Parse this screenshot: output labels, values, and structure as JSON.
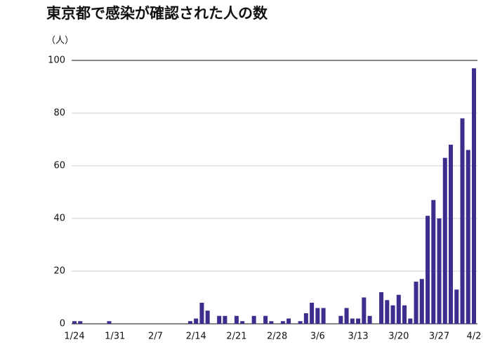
{
  "chart_data": {
    "type": "bar",
    "title": "東京都で感染が確認された人の数",
    "y_label": "（人）",
    "categories": [
      "1/24",
      null,
      null,
      null,
      null,
      null,
      null,
      "1/31",
      null,
      null,
      null,
      null,
      null,
      null,
      "2/7",
      null,
      null,
      null,
      null,
      null,
      null,
      "2/14",
      null,
      null,
      null,
      null,
      null,
      null,
      "2/21",
      null,
      null,
      null,
      null,
      null,
      null,
      "2/28",
      null,
      null,
      null,
      null,
      null,
      null,
      "3/6",
      null,
      null,
      null,
      null,
      null,
      null,
      "3/13",
      null,
      null,
      null,
      null,
      null,
      null,
      "3/20",
      null,
      null,
      null,
      null,
      null,
      null,
      "3/27",
      null,
      null,
      null,
      null,
      null,
      "4/2"
    ],
    "values": [
      1,
      1,
      0,
      0,
      0,
      0,
      1,
      0,
      0,
      0,
      0,
      0,
      0,
      0,
      0,
      0,
      0,
      0,
      0,
      0,
      1,
      2,
      8,
      5,
      0,
      3,
      3,
      0,
      3,
      1,
      0,
      3,
      0,
      3,
      1,
      0,
      1,
      2,
      0,
      1,
      4,
      8,
      6,
      6,
      0,
      0,
      3,
      6,
      2,
      2,
      10,
      3,
      0,
      12,
      9,
      7,
      11,
      7,
      2,
      16,
      17,
      41,
      47,
      40,
      63,
      68,
      13,
      78,
      66,
      97
    ],
    "color": "#3b2e8c",
    "ylim": [
      0,
      100
    ],
    "yticks": [
      0,
      20,
      40,
      60,
      80,
      100
    ],
    "grid": true
  }
}
